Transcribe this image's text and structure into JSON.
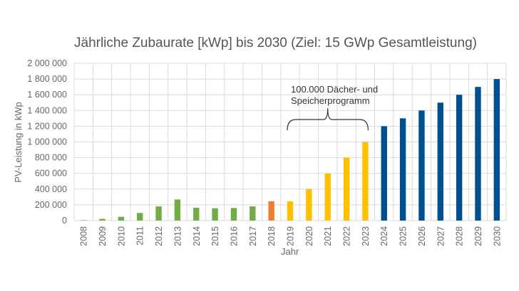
{
  "chart_data": {
    "type": "bar",
    "title": "Jährliche Zubaurate [kWp]  bis 2030 (Ziel: 15 GWp Gesamtleistung)",
    "xlabel": "Jahr",
    "ylabel": "PV-Leistung in kWp",
    "ylim": [
      0,
      2000000
    ],
    "yticks": [
      "0",
      "200 000",
      "400 000",
      "600 000",
      "800 000",
      "1 000 000",
      "1 200 000",
      "1 400 000",
      "1 600 000",
      "1 800 000",
      "2 000 000"
    ],
    "grid": true,
    "categories": [
      "2008",
      "2009",
      "2010",
      "2011",
      "2012",
      "2013",
      "2014",
      "2015",
      "2016",
      "2017",
      "2018",
      "2019",
      "2020",
      "2021",
      "2022",
      "2023",
      "2024",
      "2025",
      "2026",
      "2027",
      "2028",
      "2029",
      "2030"
    ],
    "values": [
      10000,
      22000,
      48000,
      97000,
      180000,
      268000,
      163000,
      157000,
      160000,
      180000,
      245000,
      245000,
      400000,
      600000,
      800000,
      1000000,
      1200000,
      1300000,
      1400000,
      1500000,
      1600000,
      1700000,
      1800000
    ],
    "bar_colors": [
      "#a9d18e",
      "#70ad47",
      "#70ad47",
      "#70ad47",
      "#70ad47",
      "#70ad47",
      "#70ad47",
      "#70ad47",
      "#70ad47",
      "#70ad47",
      "#ed7d31",
      "#ffc000",
      "#ffc000",
      "#ffc000",
      "#ffc000",
      "#ffc000",
      "#00508f",
      "#00508f",
      "#00508f",
      "#00508f",
      "#00508f",
      "#00508f",
      "#00508f"
    ],
    "annotations": [
      {
        "text_lines": [
          "100.000 Dächer- und",
          "Speicherprogramm"
        ],
        "span": [
          "2019",
          "2023"
        ]
      }
    ]
  }
}
